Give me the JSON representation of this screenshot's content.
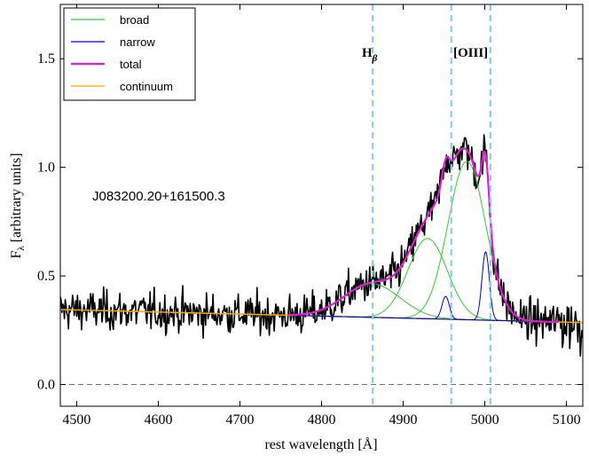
{
  "chart_data": {
    "type": "line",
    "object_name": "J083200.20+161500.3",
    "xlabel": "rest wavelength [Å]",
    "ylabel_main": "F",
    "ylabel_sub": "λ",
    "ylabel_rest": " [arbitrary units]",
    "xlim": [
      4480,
      5120
    ],
    "ylim": [
      -0.1,
      1.75
    ],
    "xticks": [
      4500,
      4600,
      4700,
      4800,
      4900,
      5000,
      5100
    ],
    "yticks": [
      0.0,
      0.5,
      1.0,
      1.5
    ],
    "ytick_labels": [
      "0.0",
      "0.5",
      "1.0",
      "1.5"
    ],
    "zero_line": 0.0,
    "emission_lines": [
      {
        "label": "H",
        "sub": "β",
        "wavelength": 4862.7
      },
      {
        "label": "[OIII]",
        "sub": "",
        "wavelength": 4958.9
      },
      {
        "label": "",
        "sub": "",
        "wavelength": 5006.8
      }
    ],
    "lines_label": {
      "hbeta_main": "H",
      "hbeta_sub": "β",
      "oiii": "[OIII]"
    },
    "continuum": {
      "name": "continuum",
      "color": "#FFA500",
      "x": [
        4480,
        5120
      ],
      "y": [
        0.345,
        0.285
      ]
    },
    "broad_components": [
      {
        "center": 4862,
        "amp": 0.155,
        "sigma": 34
      },
      {
        "center": 4930,
        "amp": 0.37,
        "sigma": 24
      },
      {
        "center": 4978,
        "amp": 0.73,
        "sigma": 23
      }
    ],
    "narrow_components": [
      {
        "center": 4952,
        "amp": 0.105,
        "sigma": 4.5
      },
      {
        "center": 5001,
        "amp": 0.315,
        "sigma": 4.5
      }
    ],
    "model_range": [
      4760,
      5090
    ],
    "noise_sigma": 0.045,
    "series": [
      {
        "name": "broad",
        "color": "#33CC33"
      },
      {
        "name": "narrow",
        "color": "#0000CC"
      },
      {
        "name": "total",
        "color": "#E020D0"
      },
      {
        "name": "continuum",
        "color": "#FFA500"
      }
    ],
    "data_color": "#000000",
    "vline_color": "#87CEEB",
    "zero_color": "#777777"
  }
}
